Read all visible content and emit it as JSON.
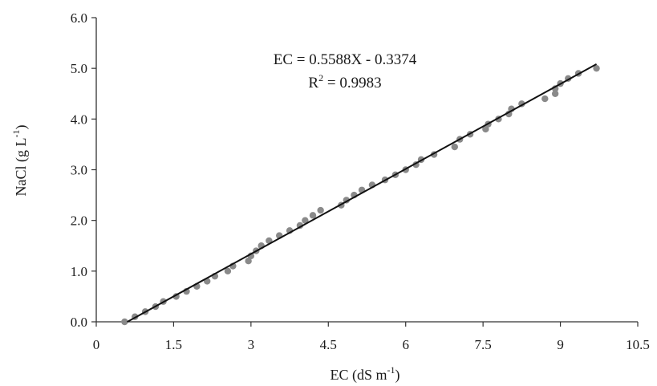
{
  "chart_data": {
    "type": "scatter",
    "title": "",
    "xlabel": "EC (dS m-1)",
    "ylabel": "NaCl (g L-1)",
    "xlabel_parts": {
      "main": "EC (dS m",
      "sup": "-1",
      "end": ")"
    },
    "ylabel_parts": {
      "main": "NaCl (g L",
      "sup": "-1",
      "end": ")"
    },
    "xlim": [
      0,
      10.5
    ],
    "ylim": [
      0,
      6.0
    ],
    "x_ticks": [
      0,
      1.5,
      3,
      4.5,
      6,
      7.5,
      9,
      10.5
    ],
    "x_tick_labels": [
      "0",
      "1.5",
      "3",
      "4.5",
      "6",
      "7.5",
      "9",
      "10.5"
    ],
    "y_ticks": [
      0,
      1,
      2,
      3,
      4,
      5,
      6
    ],
    "y_tick_labels": [
      "0.0",
      "1.0",
      "2.0",
      "3.0",
      "4.0",
      "5.0",
      "6.0"
    ],
    "grid": false,
    "legend": "none",
    "series": [
      {
        "marker_color": "#8a8a8a",
        "points": [
          [
            0.55,
            0.0
          ],
          [
            0.75,
            0.1
          ],
          [
            0.95,
            0.2
          ],
          [
            1.15,
            0.3
          ],
          [
            1.3,
            0.4
          ],
          [
            1.55,
            0.5
          ],
          [
            1.75,
            0.6
          ],
          [
            1.95,
            0.7
          ],
          [
            2.15,
            0.8
          ],
          [
            2.3,
            0.9
          ],
          [
            2.55,
            1.0
          ],
          [
            2.65,
            1.1
          ],
          [
            2.95,
            1.2
          ],
          [
            3.0,
            1.3
          ],
          [
            3.1,
            1.4
          ],
          [
            3.2,
            1.5
          ],
          [
            3.35,
            1.6
          ],
          [
            3.55,
            1.7
          ],
          [
            3.75,
            1.8
          ],
          [
            3.95,
            1.9
          ],
          [
            4.05,
            2.0
          ],
          [
            4.2,
            2.1
          ],
          [
            4.35,
            2.2
          ],
          [
            4.75,
            2.3
          ],
          [
            4.85,
            2.4
          ],
          [
            5.0,
            2.5
          ],
          [
            5.15,
            2.6
          ],
          [
            5.35,
            2.7
          ],
          [
            5.6,
            2.8
          ],
          [
            5.8,
            2.9
          ],
          [
            6.0,
            3.0
          ],
          [
            6.2,
            3.1
          ],
          [
            6.3,
            3.2
          ],
          [
            6.55,
            3.3
          ],
          [
            6.95,
            3.45
          ],
          [
            7.05,
            3.6
          ],
          [
            7.25,
            3.7
          ],
          [
            7.55,
            3.8
          ],
          [
            7.6,
            3.9
          ],
          [
            7.8,
            4.0
          ],
          [
            8.0,
            4.1
          ],
          [
            8.05,
            4.2
          ],
          [
            8.25,
            4.3
          ],
          [
            8.7,
            4.4
          ],
          [
            8.9,
            4.5
          ],
          [
            8.9,
            4.6
          ],
          [
            9.0,
            4.7
          ],
          [
            9.15,
            4.8
          ],
          [
            9.35,
            4.9
          ],
          [
            9.7,
            5.0
          ]
        ]
      }
    ],
    "trendline": {
      "slope": 0.5588,
      "intercept": -0.3374,
      "x_range": [
        0.6,
        9.7
      ],
      "color": "#111111"
    },
    "annotations": {
      "equation": "EC = 0.5588X - 0.3374",
      "r2_prefix": "R",
      "r2_sup": "2",
      "r2_value": " = 0.9983"
    }
  }
}
